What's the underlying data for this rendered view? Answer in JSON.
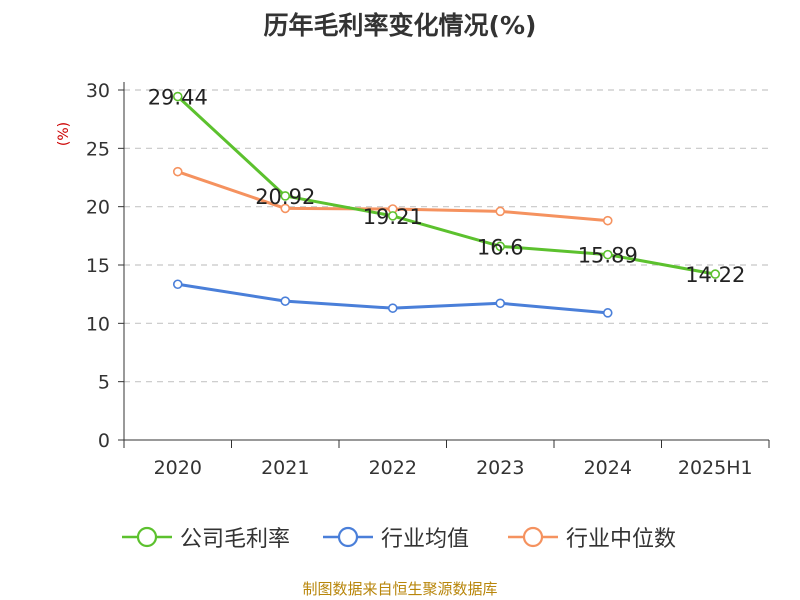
{
  "chart_data": {
    "type": "line",
    "title": "历年毛利率变化情况(%)",
    "ylabel": "(%)",
    "categories": [
      "2020",
      "2021",
      "2022",
      "2023",
      "2024",
      "2025H1"
    ],
    "yticks": [
      "0",
      "5",
      "10",
      "15",
      "20",
      "25",
      "30"
    ],
    "ylim": [
      0,
      30
    ],
    "grid": true,
    "legend_position": "bottom",
    "series": [
      {
        "name": "公司毛利率",
        "color": "#5cc12e",
        "values": [
          29.44,
          20.92,
          19.21,
          16.6,
          15.89,
          14.22
        ],
        "labels": [
          "29.44",
          "20.92",
          "19.21",
          "16.6",
          "15.89",
          "14.22"
        ]
      },
      {
        "name": "行业均值",
        "color": "#4a7fd9",
        "values": [
          13.35,
          11.9,
          11.3,
          11.72,
          10.9,
          null
        ],
        "labels": []
      },
      {
        "name": "行业中位数",
        "color": "#f5925f",
        "values": [
          23.0,
          19.85,
          19.8,
          19.6,
          18.8,
          null
        ],
        "labels": []
      }
    ]
  },
  "source": "制图数据来自恒生聚源数据库"
}
